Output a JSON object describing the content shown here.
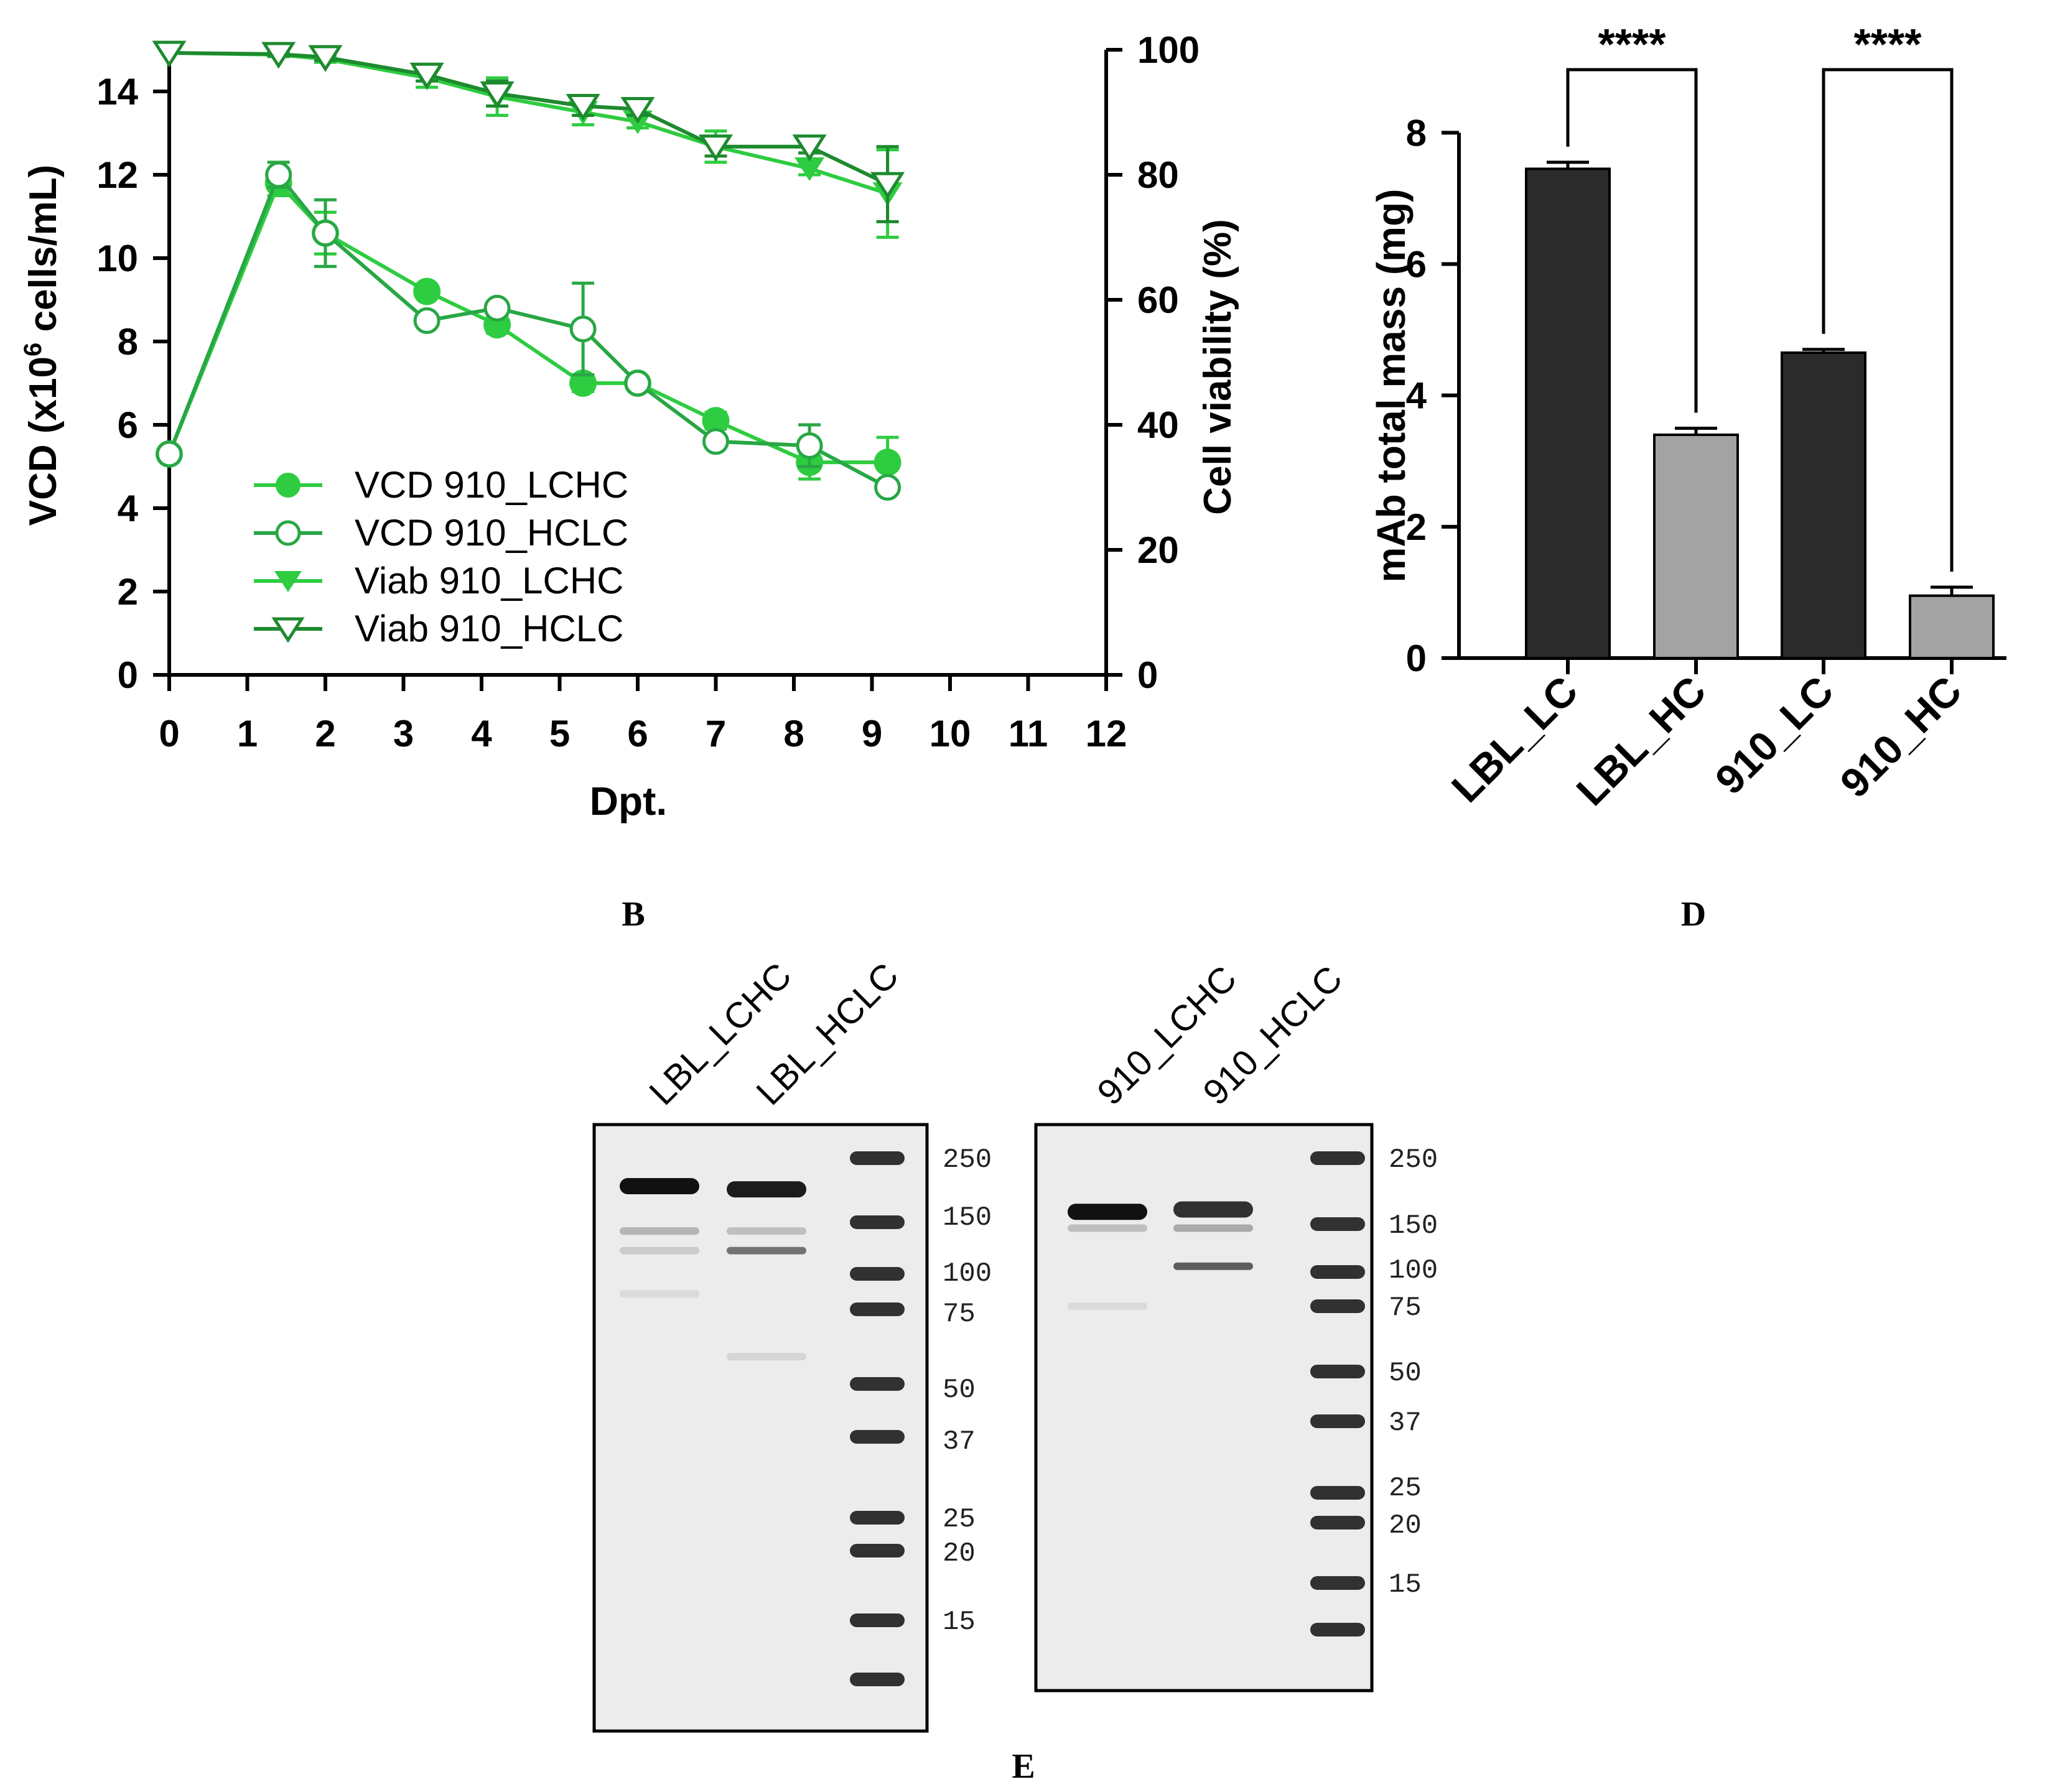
{
  "panel_labels": {
    "b": "B",
    "d": "D",
    "e": "E"
  },
  "colors": {
    "green_bright": "#2ecc40",
    "green_dark": "#1d8a2e",
    "green_mid": "#28a745",
    "bar_dark": "#2b2b2b",
    "bar_light": "#a3a3a3",
    "gel_bg": "#ececec",
    "band": "#111111"
  },
  "chart_data": [
    {
      "id": "B",
      "type": "line",
      "xlabel": "Dpt.",
      "ylabel_left": "VCD (x10",
      "ylabel_sup": "6",
      "ylabel_left_tail": " cells/mL)",
      "ylabel_right": "Cell viability (%)",
      "x_ticks": [
        "0",
        "1",
        "2",
        "3",
        "4",
        "5",
        "6",
        "7",
        "8",
        "9",
        "10",
        "11",
        "12"
      ],
      "y_left_ticks": [
        "0",
        "2",
        "4",
        "6",
        "8",
        "10",
        "12",
        "14"
      ],
      "y_right_ticks": [
        "0",
        "20",
        "40",
        "60",
        "80",
        "100"
      ],
      "xlim": [
        0,
        12
      ],
      "ylim_left": [
        0,
        15
      ],
      "ylim_right": [
        0,
        100
      ],
      "series": [
        {
          "name": "VCD 910_LCHC",
          "axis": "left",
          "marker": "circle-filled",
          "x": [
            0,
            1.4,
            2,
            3.3,
            4.2,
            5.3,
            6,
            7,
            8.2,
            9.2
          ],
          "y": [
            5.3,
            11.8,
            10.6,
            9.2,
            8.4,
            7.0,
            7.0,
            6.1,
            5.1,
            5.1
          ],
          "err": [
            0,
            0.3,
            0.5,
            0.1,
            0.2,
            0.2,
            0.1,
            0.2,
            0.4,
            0.6
          ]
        },
        {
          "name": "VCD 910_HCLC",
          "axis": "left",
          "marker": "circle-open",
          "x": [
            0,
            1.4,
            2,
            3.3,
            4.2,
            5.3,
            6,
            7,
            8.2,
            9.2
          ],
          "y": [
            5.3,
            12.0,
            10.6,
            8.5,
            8.8,
            8.3,
            7.0,
            5.6,
            5.5,
            4.5
          ],
          "err": [
            0,
            0.3,
            0.8,
            0.1,
            0.1,
            1.1,
            0.1,
            0.1,
            0.5,
            0.1
          ]
        },
        {
          "name": "Viab 910_LCHC",
          "axis": "right",
          "marker": "triangle-down-filled",
          "x": [
            0,
            1.4,
            2,
            3.3,
            4.2,
            5.3,
            6,
            7,
            8.2,
            9.2
          ],
          "y": [
            99.5,
            99.2,
            98.5,
            95.5,
            92.5,
            90.0,
            88.5,
            84.5,
            81.0,
            77.0
          ],
          "err": [
            0,
            0.3,
            0.5,
            1.5,
            3.0,
            2.0,
            1.0,
            2.5,
            1.0,
            7.0
          ]
        },
        {
          "name": "Viab 910_HCLC",
          "axis": "right",
          "marker": "triangle-down-open",
          "x": [
            0,
            1.4,
            2,
            3.3,
            4.2,
            5.3,
            6,
            7,
            8.2,
            9.2
          ],
          "y": [
            99.5,
            99.3,
            98.8,
            96.0,
            93.0,
            91.0,
            90.5,
            84.5,
            84.5,
            78.5
          ],
          "err": [
            0,
            0.3,
            0.5,
            1.0,
            2.0,
            1.5,
            1.0,
            1.5,
            1.0,
            6.0
          ]
        }
      ]
    },
    {
      "id": "D",
      "type": "bar",
      "ylabel": "mAb total mass (mg)",
      "categories": [
        "LBL_LC",
        "LBL_HC",
        "910_LC",
        "910_HC"
      ],
      "values": [
        7.45,
        3.4,
        4.65,
        0.95
      ],
      "errors": [
        0.1,
        0.1,
        0.05,
        0.13
      ],
      "bar_colors": [
        "dark",
        "light",
        "dark",
        "light"
      ],
      "y_ticks": [
        "0",
        "2",
        "4",
        "6",
        "8"
      ],
      "ylim": [
        0,
        8.6
      ],
      "significance": [
        {
          "from": 0,
          "to": 1,
          "label": "****"
        },
        {
          "from": 2,
          "to": 3,
          "label": "****"
        }
      ]
    }
  ],
  "gels": [
    {
      "id": "gel-left",
      "lane_labels": [
        "LBL_LCHC",
        "LBL_HCLC"
      ],
      "marker_labels": [
        "250",
        "150",
        "100",
        "75",
        "50",
        "37",
        "25",
        "20",
        "15"
      ],
      "ladder_kda": [
        250,
        150,
        100,
        75,
        50,
        37,
        25,
        20,
        15,
        10
      ],
      "bands": [
        {
          "lane": 0,
          "kda": 200,
          "intensity": 1.0
        },
        {
          "lane": 0,
          "kda": 140,
          "intensity": 0.25
        },
        {
          "lane": 0,
          "kda": 120,
          "intensity": 0.15
        },
        {
          "lane": 0,
          "kda": 85,
          "intensity": 0.08
        },
        {
          "lane": 1,
          "kda": 195,
          "intensity": 0.95
        },
        {
          "lane": 1,
          "kda": 140,
          "intensity": 0.2
        },
        {
          "lane": 1,
          "kda": 120,
          "intensity": 0.55
        },
        {
          "lane": 1,
          "kda": 58,
          "intensity": 0.1
        }
      ]
    },
    {
      "id": "gel-right",
      "lane_labels": [
        "910_LCHC",
        "910_HCLC"
      ],
      "marker_labels": [
        "250",
        "150",
        "100",
        "75",
        "50",
        "37",
        "25",
        "20",
        "15"
      ],
      "ladder_kda": [
        250,
        150,
        100,
        75,
        50,
        37,
        25,
        20,
        15,
        10
      ],
      "bands": [
        {
          "lane": 0,
          "kda": 165,
          "intensity": 1.0
        },
        {
          "lane": 0,
          "kda": 145,
          "intensity": 0.2
        },
        {
          "lane": 0,
          "kda": 75,
          "intensity": 0.08
        },
        {
          "lane": 1,
          "kda": 168,
          "intensity": 0.85
        },
        {
          "lane": 1,
          "kda": 145,
          "intensity": 0.3
        },
        {
          "lane": 1,
          "kda": 105,
          "intensity": 0.65
        }
      ]
    }
  ]
}
